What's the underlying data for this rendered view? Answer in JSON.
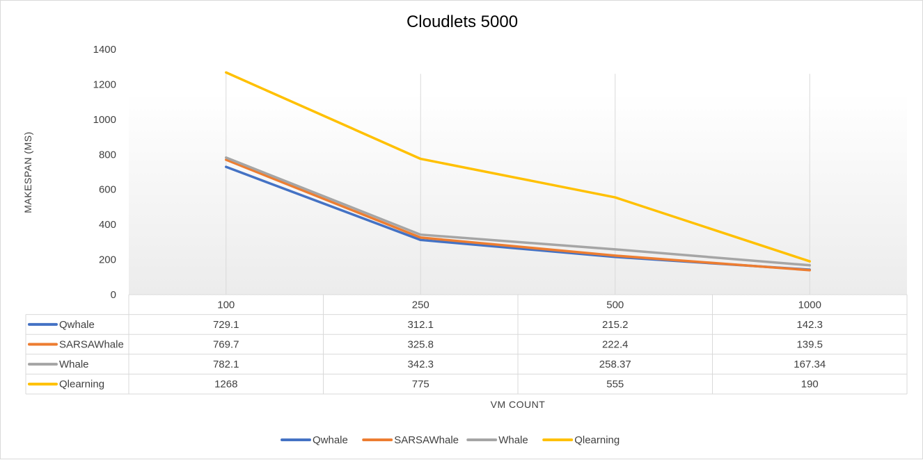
{
  "chart_data": {
    "type": "line",
    "title": "Cloudlets 5000",
    "xlabel": "VM COUNT",
    "ylabel": "MAKESPAN (MS)",
    "categories": [
      "100",
      "250",
      "500",
      "1000"
    ],
    "ylim": [
      0,
      1400
    ],
    "yticks": [
      "0",
      "200",
      "400",
      "600",
      "800",
      "1000",
      "1200",
      "1400"
    ],
    "grid": "vertical",
    "legend": "bottom",
    "data_table": true,
    "series": [
      {
        "name": "Qwhale",
        "color": "#4472c4",
        "values": [
          729.1,
          312.1,
          215.2,
          142.3
        ],
        "labels": [
          "729.1",
          "312.1",
          "215.2",
          "142.3"
        ]
      },
      {
        "name": "SARSAWhale",
        "color": "#ed7d31",
        "values": [
          769.7,
          325.8,
          222.4,
          139.5
        ],
        "labels": [
          "769.7",
          "325.8",
          "222.4",
          "139.5"
        ]
      },
      {
        "name": "Whale",
        "color": "#a5a5a5",
        "values": [
          782.1,
          342.3,
          258.37,
          167.34
        ],
        "labels": [
          "782.1",
          "342.3",
          "258.37",
          "167.34"
        ]
      },
      {
        "name": "Qlearning",
        "color": "#ffc000",
        "values": [
          1268,
          775,
          555,
          190
        ],
        "labels": [
          "1268",
          "775",
          "555",
          "190"
        ]
      }
    ]
  }
}
